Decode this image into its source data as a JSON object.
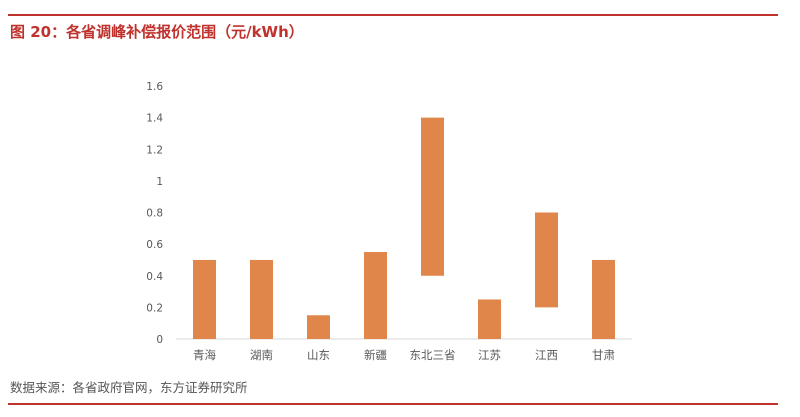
{
  "header": {
    "title": "图 20：各省调峰补偿报价范围（元/kWh）"
  },
  "footer": {
    "source": "数据来源：各省政府官网，东方证券研究所"
  },
  "colors": {
    "bar": "#e0864a",
    "accent": "#c0322d",
    "axis": "#d9d9d9",
    "text": "#595959"
  },
  "chart_data": {
    "type": "bar",
    "subtype": "floating-range",
    "title": "各省调峰补偿报价范围（元/kWh）",
    "xlabel": "",
    "ylabel": "",
    "ylim": [
      0,
      1.6
    ],
    "yticks": [
      "0",
      "0.2",
      "0.4",
      "0.6",
      "0.8",
      "1",
      "1.2",
      "1.4",
      "1.6"
    ],
    "grid": false,
    "legend": "none",
    "categories": [
      "青海",
      "湖南",
      "山东",
      "新疆",
      "东北三省",
      "江苏",
      "江西",
      "甘肃"
    ],
    "low": [
      0,
      0,
      0,
      0,
      0.4,
      0,
      0.2,
      0
    ],
    "high": [
      0.5,
      0.5,
      0.15,
      0.55,
      1.4,
      0.25,
      0.8,
      0.5
    ]
  }
}
